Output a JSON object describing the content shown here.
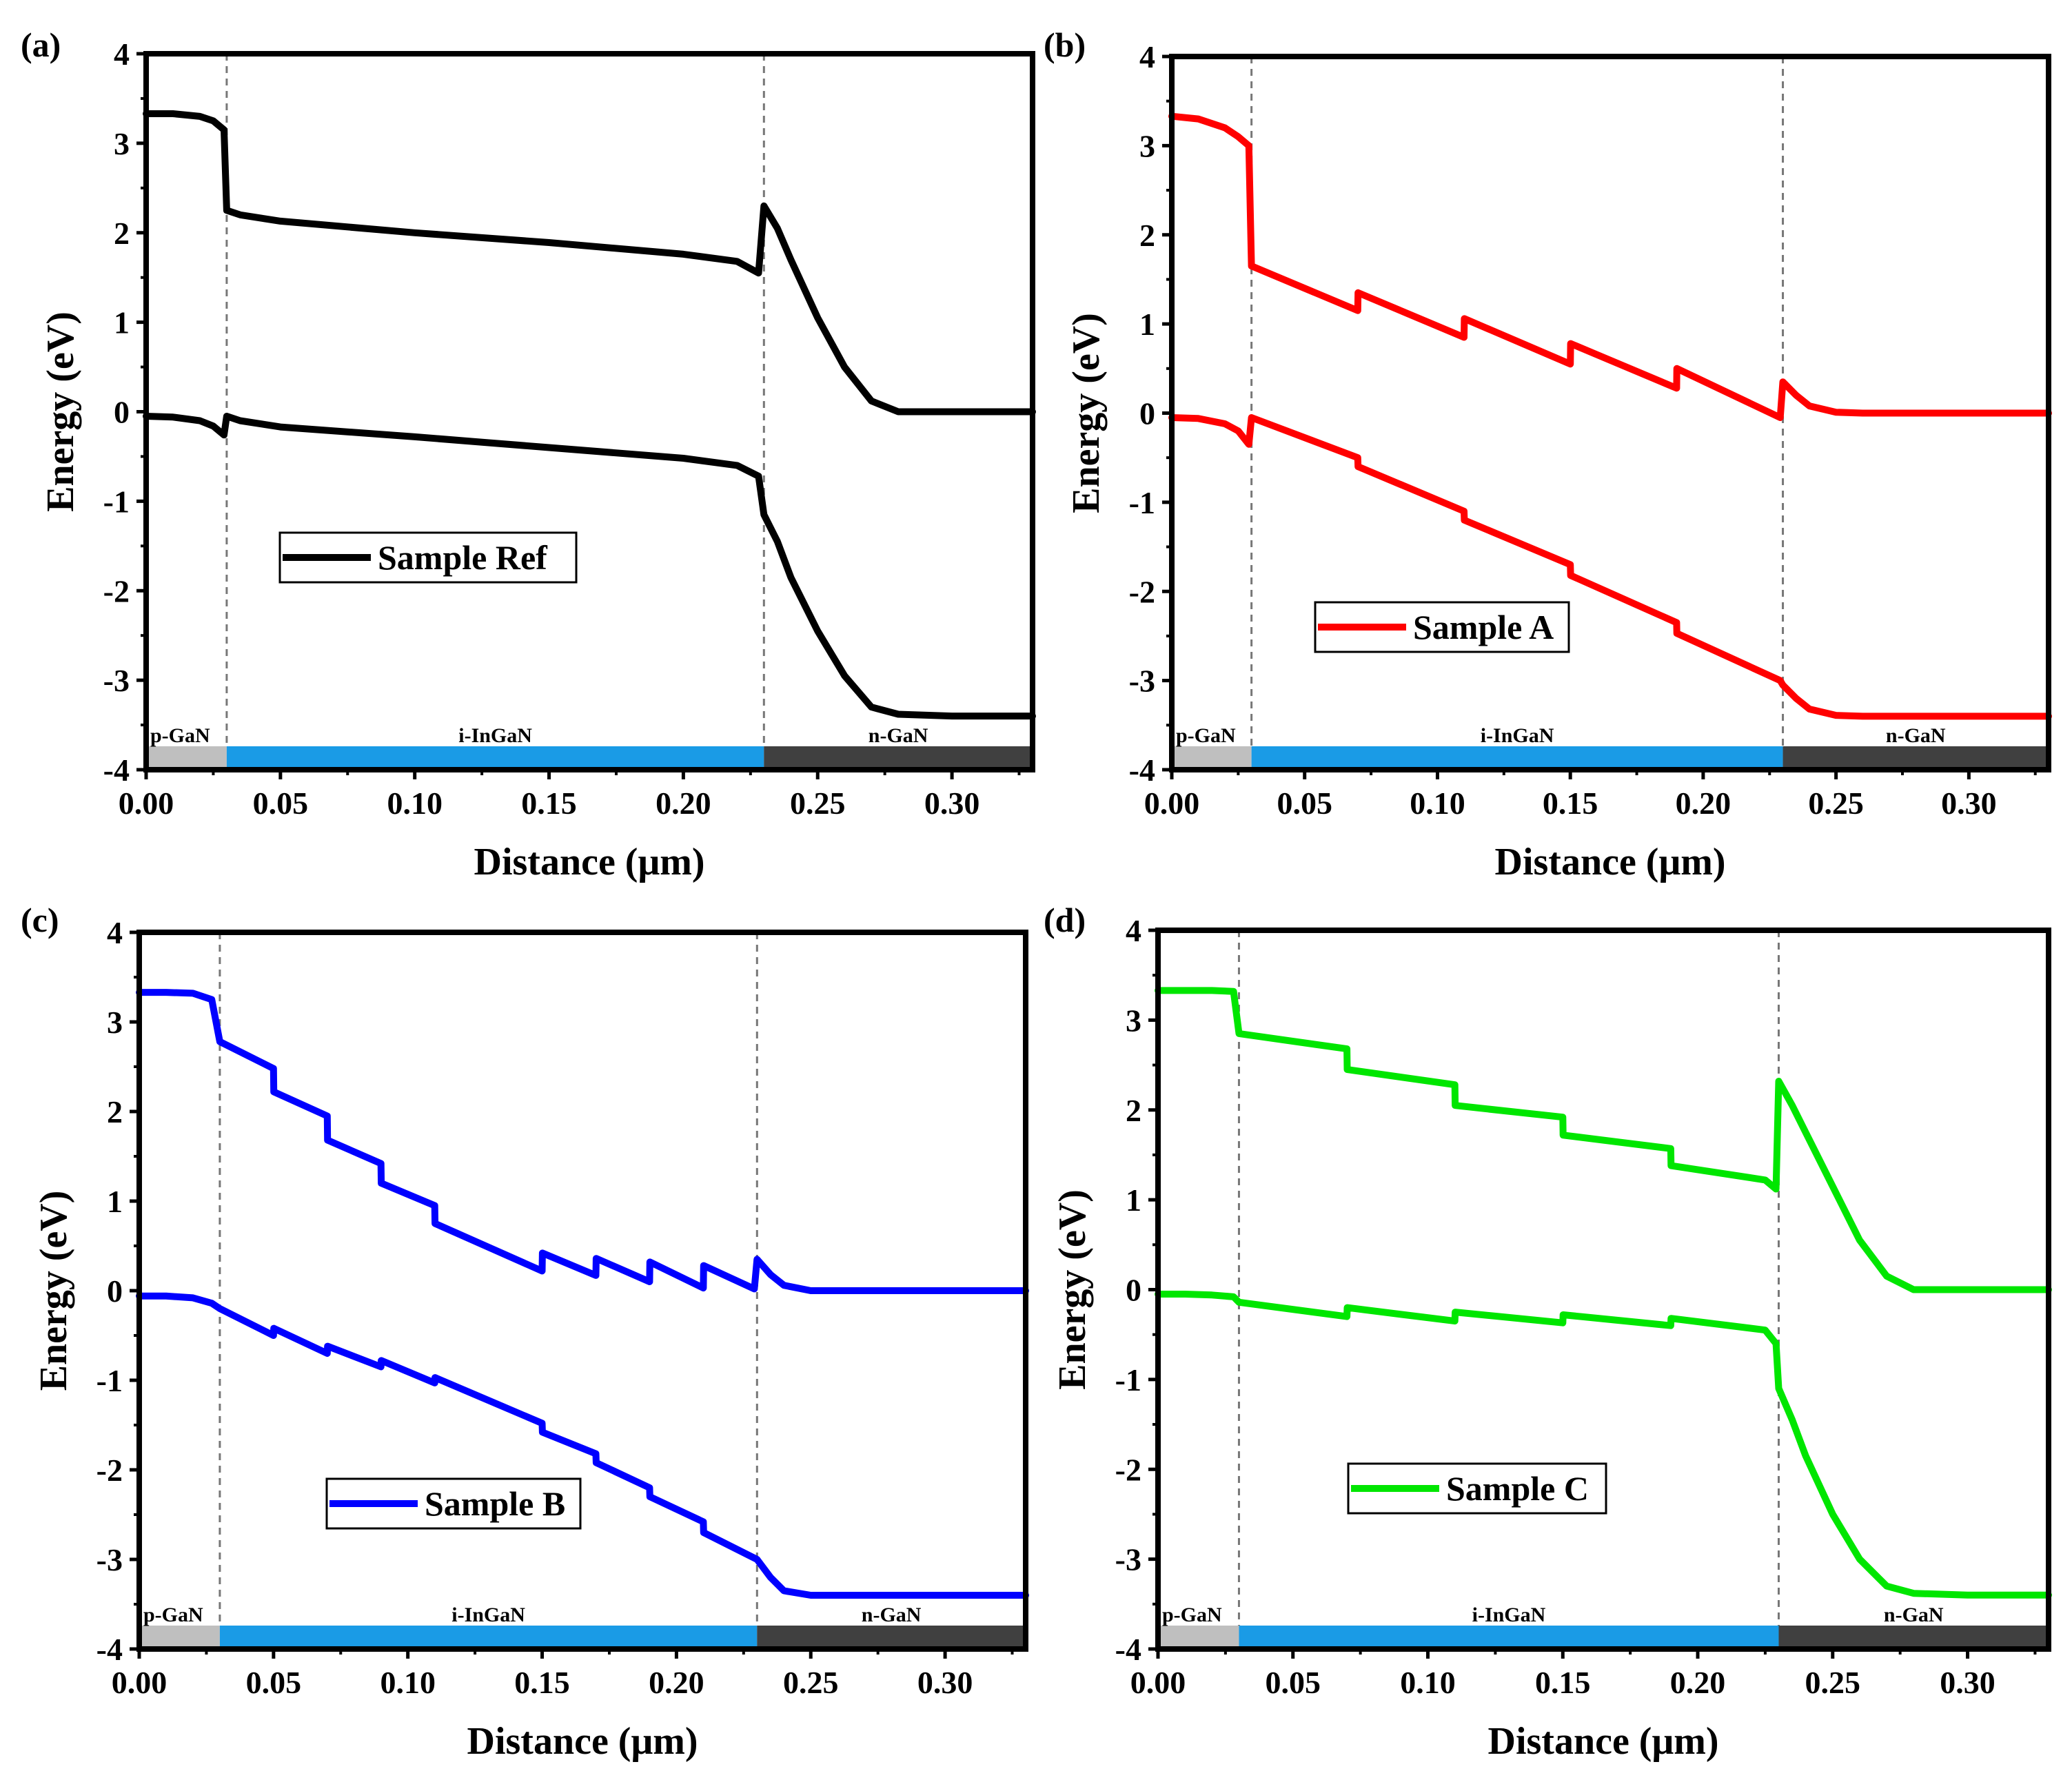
{
  "figure": {
    "panels": [
      {
        "label": "(a)",
        "legend": "Sample Ref",
        "color": "#000000",
        "xlabel": "Distance (μm)",
        "ylabel": "Energy (eV)",
        "xticks": [
          "0.00",
          "0.05",
          "0.10",
          "0.15",
          "0.20",
          "0.25",
          "0.30"
        ],
        "yticks": [
          "-4",
          "-3",
          "-2",
          "-1",
          "0",
          "1",
          "2",
          "3",
          "4"
        ],
        "regions": [
          {
            "label": "p-GaN",
            "x0": 0.0,
            "x1": 0.03,
            "color": "#bfbfbf"
          },
          {
            "label": "i-InGaN",
            "x0": 0.03,
            "x1": 0.23,
            "color": "#1a9be6"
          },
          {
            "label": "n-GaN",
            "x0": 0.23,
            "x1": 0.33,
            "color": "#404040"
          }
        ]
      },
      {
        "label": "(b)",
        "legend": "Sample A",
        "color": "#ff0000",
        "xlabel": "Distance (μm)",
        "ylabel": "Energy (eV)",
        "xticks": [
          "0.00",
          "0.05",
          "0.10",
          "0.15",
          "0.20",
          "0.25",
          "0.30"
        ],
        "yticks": [
          "-4",
          "-3",
          "-2",
          "-1",
          "0",
          "1",
          "2",
          "3",
          "4"
        ],
        "regions": [
          {
            "label": "p-GaN",
            "x0": 0.0,
            "x1": 0.03,
            "color": "#bfbfbf"
          },
          {
            "label": "i-InGaN",
            "x0": 0.03,
            "x1": 0.23,
            "color": "#1a9be6"
          },
          {
            "label": "n-GaN",
            "x0": 0.23,
            "x1": 0.33,
            "color": "#404040"
          }
        ]
      },
      {
        "label": "(c)",
        "legend": "Sample B",
        "color": "#0000ff",
        "xlabel": "Distance (μm)",
        "ylabel": "Energy (eV)",
        "xticks": [
          "0.00",
          "0.05",
          "0.10",
          "0.15",
          "0.20",
          "0.25",
          "0.30"
        ],
        "yticks": [
          "-4",
          "-3",
          "-2",
          "-1",
          "0",
          "1",
          "2",
          "3",
          "4"
        ],
        "regions": [
          {
            "label": "p-GaN",
            "x0": 0.0,
            "x1": 0.03,
            "color": "#bfbfbf"
          },
          {
            "label": "i-InGaN",
            "x0": 0.03,
            "x1": 0.23,
            "color": "#1a9be6"
          },
          {
            "label": "n-GaN",
            "x0": 0.23,
            "x1": 0.33,
            "color": "#404040"
          }
        ]
      },
      {
        "label": "(d)",
        "legend": "Sample C",
        "color": "#00e600",
        "xlabel": "Distance (μm)",
        "ylabel": "Energy (eV)",
        "xticks": [
          "0.00",
          "0.05",
          "0.10",
          "0.15",
          "0.20",
          "0.25",
          "0.30"
        ],
        "yticks": [
          "-4",
          "-3",
          "-2",
          "-1",
          "0",
          "1",
          "2",
          "3",
          "4"
        ],
        "regions": [
          {
            "label": "p-GaN",
            "x0": 0.0,
            "x1": 0.03,
            "color": "#bfbfbf"
          },
          {
            "label": "i-InGaN",
            "x0": 0.03,
            "x1": 0.23,
            "color": "#1a9be6"
          },
          {
            "label": "n-GaN",
            "x0": 0.23,
            "x1": 0.33,
            "color": "#404040"
          }
        ]
      }
    ]
  },
  "chart_data": [
    {
      "type": "line",
      "title": "(a)",
      "xlabel": "Distance (μm)",
      "ylabel": "Energy (eV)",
      "xlim": [
        0,
        0.33
      ],
      "ylim": [
        -4,
        4
      ],
      "interfaces": [
        0.03,
        0.23
      ],
      "series": [
        {
          "name": "Sample Ref",
          "band": "conduction",
          "x": [
            0,
            0.01,
            0.02,
            0.025,
            0.029,
            0.03,
            0.035,
            0.05,
            0.1,
            0.15,
            0.2,
            0.22,
            0.228,
            0.23,
            0.235,
            0.24,
            0.25,
            0.26,
            0.27,
            0.28,
            0.3,
            0.33
          ],
          "y": [
            3.33,
            3.33,
            3.3,
            3.25,
            3.15,
            2.25,
            2.2,
            2.13,
            2.0,
            1.89,
            1.76,
            1.68,
            1.55,
            2.3,
            2.05,
            1.7,
            1.05,
            0.5,
            0.12,
            0.0,
            0.0,
            0.0
          ]
        },
        {
          "name": "Sample Ref",
          "band": "valence",
          "x": [
            0,
            0.01,
            0.02,
            0.025,
            0.029,
            0.03,
            0.035,
            0.05,
            0.1,
            0.15,
            0.2,
            0.22,
            0.228,
            0.23,
            0.235,
            0.24,
            0.25,
            0.26,
            0.27,
            0.28,
            0.3,
            0.33
          ],
          "y": [
            -0.05,
            -0.06,
            -0.1,
            -0.16,
            -0.26,
            -0.05,
            -0.1,
            -0.17,
            -0.28,
            -0.4,
            -0.52,
            -0.6,
            -0.72,
            -1.15,
            -1.45,
            -1.85,
            -2.45,
            -2.95,
            -3.3,
            -3.38,
            -3.4,
            -3.4
          ]
        }
      ]
    },
    {
      "type": "line",
      "title": "(b)",
      "xlabel": "Distance (μm)",
      "ylabel": "Energy (eV)",
      "xlim": [
        0,
        0.33
      ],
      "ylim": [
        -4,
        4
      ],
      "interfaces": [
        0.03,
        0.23
      ],
      "series": [
        {
          "name": "Sample A",
          "band": "conduction",
          "x": [
            0,
            0.01,
            0.02,
            0.025,
            0.029,
            0.03,
            0.07,
            0.0701,
            0.11,
            0.1101,
            0.15,
            0.1501,
            0.19,
            0.1901,
            0.229,
            0.23,
            0.235,
            0.24,
            0.25,
            0.26,
            0.33
          ],
          "y": [
            3.33,
            3.3,
            3.2,
            3.1,
            3.0,
            1.65,
            1.15,
            1.35,
            0.85,
            1.06,
            0.55,
            0.78,
            0.28,
            0.5,
            -0.05,
            0.35,
            0.2,
            0.08,
            0.01,
            0.0,
            0.0
          ]
        },
        {
          "name": "Sample A",
          "band": "valence",
          "x": [
            0,
            0.01,
            0.02,
            0.025,
            0.029,
            0.03,
            0.07,
            0.0701,
            0.11,
            0.1101,
            0.15,
            0.1501,
            0.19,
            0.1901,
            0.229,
            0.23,
            0.235,
            0.24,
            0.25,
            0.26,
            0.33
          ],
          "y": [
            -0.05,
            -0.06,
            -0.12,
            -0.2,
            -0.35,
            -0.05,
            -0.5,
            -0.6,
            -1.1,
            -1.2,
            -1.7,
            -1.82,
            -2.35,
            -2.47,
            -3.0,
            -3.05,
            -3.2,
            -3.32,
            -3.39,
            -3.4,
            -3.4
          ]
        }
      ]
    },
    {
      "type": "line",
      "title": "(c)",
      "xlabel": "Distance (μm)",
      "ylabel": "Energy (eV)",
      "xlim": [
        0,
        0.33
      ],
      "ylim": [
        -4,
        4
      ],
      "interfaces": [
        0.03,
        0.23
      ],
      "series": [
        {
          "name": "Sample B",
          "band": "conduction",
          "x": [
            0,
            0.01,
            0.02,
            0.027,
            0.03,
            0.05,
            0.0501,
            0.07,
            0.0701,
            0.09,
            0.0901,
            0.11,
            0.1101,
            0.15,
            0.1501,
            0.17,
            0.1701,
            0.19,
            0.1901,
            0.21,
            0.2101,
            0.229,
            0.23,
            0.235,
            0.24,
            0.25,
            0.33
          ],
          "y": [
            3.33,
            3.33,
            3.32,
            3.25,
            2.78,
            2.48,
            2.22,
            1.95,
            1.68,
            1.42,
            1.2,
            0.95,
            0.75,
            0.22,
            0.42,
            0.17,
            0.36,
            0.1,
            0.32,
            0.03,
            0.28,
            0.02,
            0.35,
            0.18,
            0.06,
            0.0,
            0.0
          ]
        },
        {
          "name": "Sample B",
          "band": "valence",
          "x": [
            0,
            0.01,
            0.02,
            0.027,
            0.03,
            0.05,
            0.0501,
            0.07,
            0.0701,
            0.09,
            0.0901,
            0.11,
            0.1101,
            0.15,
            0.1501,
            0.17,
            0.1701,
            0.19,
            0.1901,
            0.21,
            0.2101,
            0.23,
            0.235,
            0.24,
            0.25,
            0.33
          ],
          "y": [
            -0.06,
            -0.06,
            -0.08,
            -0.14,
            -0.2,
            -0.5,
            -0.42,
            -0.7,
            -0.62,
            -0.85,
            -0.78,
            -1.03,
            -0.97,
            -1.48,
            -1.58,
            -1.82,
            -1.92,
            -2.2,
            -2.3,
            -2.58,
            -2.7,
            -3.0,
            -3.2,
            -3.35,
            -3.4,
            -3.4
          ]
        }
      ]
    },
    {
      "type": "line",
      "title": "(d)",
      "xlabel": "Distance (μm)",
      "ylabel": "Energy (eV)",
      "xlim": [
        0,
        0.33
      ],
      "ylim": [
        -4,
        4
      ],
      "interfaces": [
        0.03,
        0.23
      ],
      "series": [
        {
          "name": "Sample C",
          "band": "conduction",
          "x": [
            0,
            0.01,
            0.02,
            0.028,
            0.03,
            0.07,
            0.0701,
            0.11,
            0.1101,
            0.15,
            0.1501,
            0.19,
            0.1901,
            0.225,
            0.229,
            0.23,
            0.235,
            0.24,
            0.25,
            0.26,
            0.27,
            0.28,
            0.3,
            0.33
          ],
          "y": [
            3.33,
            3.33,
            3.33,
            3.32,
            2.85,
            2.68,
            2.45,
            2.28,
            2.05,
            1.92,
            1.72,
            1.57,
            1.38,
            1.22,
            1.12,
            2.32,
            2.05,
            1.75,
            1.15,
            0.55,
            0.15,
            0.0,
            0.0,
            0.0
          ]
        },
        {
          "name": "Sample C",
          "band": "valence",
          "x": [
            0,
            0.01,
            0.02,
            0.028,
            0.03,
            0.07,
            0.0701,
            0.11,
            0.1101,
            0.15,
            0.1501,
            0.19,
            0.1901,
            0.225,
            0.229,
            0.23,
            0.235,
            0.24,
            0.25,
            0.26,
            0.27,
            0.28,
            0.3,
            0.33
          ],
          "y": [
            -0.05,
            -0.05,
            -0.06,
            -0.08,
            -0.14,
            -0.3,
            -0.2,
            -0.35,
            -0.25,
            -0.37,
            -0.28,
            -0.4,
            -0.32,
            -0.45,
            -0.6,
            -1.1,
            -1.45,
            -1.85,
            -2.5,
            -3.0,
            -3.3,
            -3.38,
            -3.4,
            -3.4
          ]
        }
      ]
    }
  ]
}
